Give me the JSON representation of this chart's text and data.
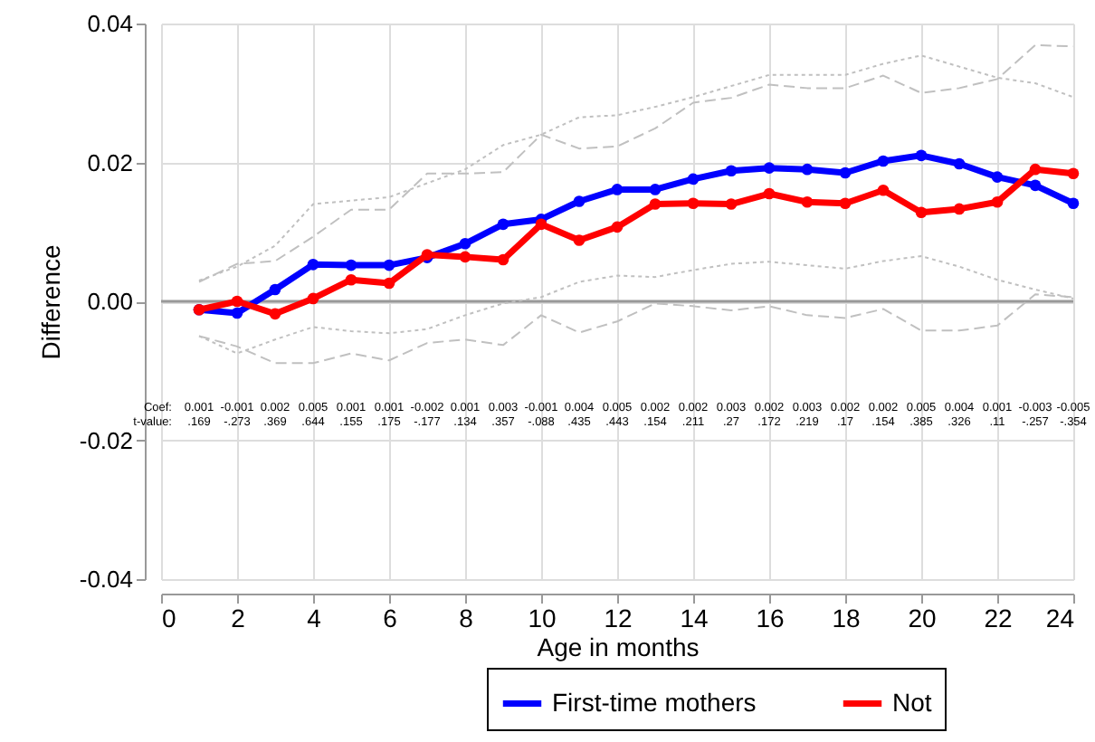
{
  "chart_data": {
    "type": "line",
    "xlabel": "Age in months",
    "ylabel": "Difference",
    "x": [
      1,
      2,
      3,
      4,
      5,
      6,
      7,
      8,
      9,
      10,
      11,
      12,
      13,
      14,
      15,
      16,
      17,
      18,
      19,
      20,
      21,
      22,
      23,
      24
    ],
    "series": [
      {
        "name": "First-time mothers",
        "color": "#0000ff",
        "marker": "circle",
        "line_style": "solid",
        "values": [
          -0.0012,
          -0.0017,
          0.0017,
          0.0053,
          0.0052,
          0.0052,
          0.0063,
          0.0083,
          0.0111,
          0.0118,
          0.0144,
          0.0161,
          0.0161,
          0.0176,
          0.0188,
          0.0192,
          0.019,
          0.0185,
          0.0202,
          0.021,
          0.0198,
          0.0179,
          0.0167,
          0.0141
        ]
      },
      {
        "name": "Not",
        "color": "#ff0000",
        "marker": "circle",
        "line_style": "solid",
        "values": [
          -0.0012,
          0,
          -0.0018,
          0.0004,
          0.0031,
          0.0026,
          0.0067,
          0.0064,
          0.006,
          0.0111,
          0.0088,
          0.0107,
          0.014,
          0.0141,
          0.014,
          0.0155,
          0.0143,
          0.0141,
          0.016,
          0.0128,
          0.0133,
          0.0143,
          0.019,
          0.0184
        ]
      },
      {
        "color": "#c0c0c0",
        "marker": "none",
        "line_style": "dotted",
        "values": [
          0.003,
          0.005,
          0.008,
          0.014,
          0.0145,
          0.015,
          0.017,
          0.019,
          0.0225,
          0.024,
          0.0265,
          0.0268,
          0.028,
          0.0294,
          0.031,
          0.0326,
          0.0326,
          0.0326,
          0.0342,
          0.0354,
          0.0338,
          0.0322,
          0.0314,
          0.0294
        ]
      },
      {
        "color": "#c0c0c0",
        "marker": "none",
        "line_style": "dashed",
        "values": [
          0.0028,
          0.0054,
          0.0058,
          0.0093,
          0.0132,
          0.0132,
          0.0184,
          0.0184,
          0.0186,
          0.024,
          0.022,
          0.0223,
          0.0249,
          0.0286,
          0.0293,
          0.0312,
          0.0307,
          0.0307,
          0.0325,
          0.03,
          0.0307,
          0.032,
          0.0369,
          0.0367
        ]
      },
      {
        "color": "#c0c0c0",
        "marker": "none",
        "line_style": "dotted",
        "values": [
          -0.005,
          -0.0075,
          -0.0055,
          -0.0037,
          -0.0043,
          -0.0046,
          -0.004,
          -0.002,
          -0.0003,
          0.0006,
          0.0028,
          0.0037,
          0.0035,
          0.0045,
          0.0054,
          0.0057,
          0.0052,
          0.0047,
          0.0058,
          0.0065,
          0.005,
          0.0031,
          0.0017,
          0.0004
        ]
      },
      {
        "color": "#c0c0c0",
        "marker": "none",
        "line_style": "dashed",
        "values": [
          -0.005,
          -0.0065,
          -0.0089,
          -0.0089,
          -0.0075,
          -0.0085,
          -0.006,
          -0.0055,
          -0.0063,
          -0.002,
          -0.0045,
          -0.0029,
          -0.0003,
          -0.0007,
          -0.0013,
          -0.0007,
          -0.002,
          -0.0024,
          -0.0011,
          -0.0042,
          -0.0042,
          -0.0035,
          0.001,
          0.0006
        ]
      }
    ],
    "xlim": [
      0,
      24
    ],
    "xticks": [
      0,
      2,
      4,
      6,
      8,
      10,
      12,
      14,
      16,
      18,
      20,
      22,
      24
    ],
    "ylim": [
      -0.04,
      0.04
    ],
    "yticks": [
      {
        "value": -0.04,
        "label": "-0.04"
      },
      {
        "value": -0.02,
        "label": "-0.02"
      },
      {
        "value": 0,
        "label": "0.00"
      },
      {
        "value": 0.02,
        "label": "0.02"
      },
      {
        "value": 0.04,
        "label": "0.04"
      }
    ],
    "grid": true,
    "legend": "bottom",
    "ref_lines": [
      {
        "axis": "y",
        "value": 0,
        "color": "#999999"
      }
    ],
    "annotations": [
      "Coef:",
      "0.001",
      "-0.001",
      "0.002",
      "0.005",
      "0.001",
      "0.001",
      "-0.002",
      "0.001",
      "0.003",
      "-0.001",
      "0.004",
      "0.005",
      "0.002",
      "0.002",
      "0.003",
      "0.002",
      "0.003",
      "0.002",
      "0.002",
      "0.005",
      "0.004",
      "0.001",
      "-0.003",
      "-0.005",
      "t-value:",
      ".169",
      "-.273",
      ".369",
      ".644",
      ".155",
      ".175",
      "-.177",
      ".134",
      ".357",
      "-.088",
      ".435",
      ".443",
      ".154",
      ".211",
      ".27",
      ".172",
      ".219",
      ".17",
      ".154",
      ".385",
      ".326",
      ".11",
      "-.257",
      "-.354"
    ]
  }
}
